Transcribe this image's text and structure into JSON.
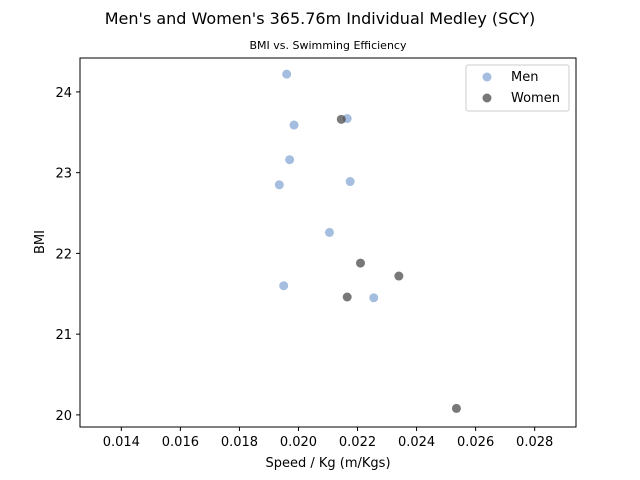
{
  "chart_data": {
    "type": "scatter",
    "title": "Men's and Women's 365.76m Individual Medley (SCY)",
    "subtitle": "BMI vs. Swimming Efficiency",
    "xlabel": "Speed / Kg (m/Kgs)",
    "ylabel": "BMI",
    "xlim": [
      0.0126,
      0.0294
    ],
    "ylim": [
      19.85,
      24.42
    ],
    "xticks": [
      0.014,
      0.016,
      0.018,
      0.02,
      0.022,
      0.024,
      0.026,
      0.028
    ],
    "xtick_labels": [
      "0.014",
      "0.016",
      "0.018",
      "0.020",
      "0.022",
      "0.024",
      "0.026",
      "0.028"
    ],
    "yticks": [
      20,
      21,
      22,
      23,
      24
    ],
    "ytick_labels": [
      "20",
      "21",
      "22",
      "23",
      "24"
    ],
    "grid": false,
    "legend_position": "top-right",
    "series": [
      {
        "name": "Men",
        "color": "#7fa3d1",
        "points": [
          {
            "x": 0.0196,
            "y": 24.22
          },
          {
            "x": 0.02165,
            "y": 23.67
          },
          {
            "x": 0.01985,
            "y": 23.59
          },
          {
            "x": 0.0197,
            "y": 23.16
          },
          {
            "x": 0.01935,
            "y": 22.85
          },
          {
            "x": 0.02175,
            "y": 22.89
          },
          {
            "x": 0.02105,
            "y": 22.26
          },
          {
            "x": 0.0195,
            "y": 21.6
          },
          {
            "x": 0.02255,
            "y": 21.45
          }
        ]
      },
      {
        "name": "Women",
        "color": "#3f3f3f",
        "points": [
          {
            "x": 0.02145,
            "y": 23.66
          },
          {
            "x": 0.0221,
            "y": 21.88
          },
          {
            "x": 0.0234,
            "y": 21.72
          },
          {
            "x": 0.02165,
            "y": 21.46
          },
          {
            "x": 0.02535,
            "y": 20.08
          }
        ]
      }
    ]
  }
}
